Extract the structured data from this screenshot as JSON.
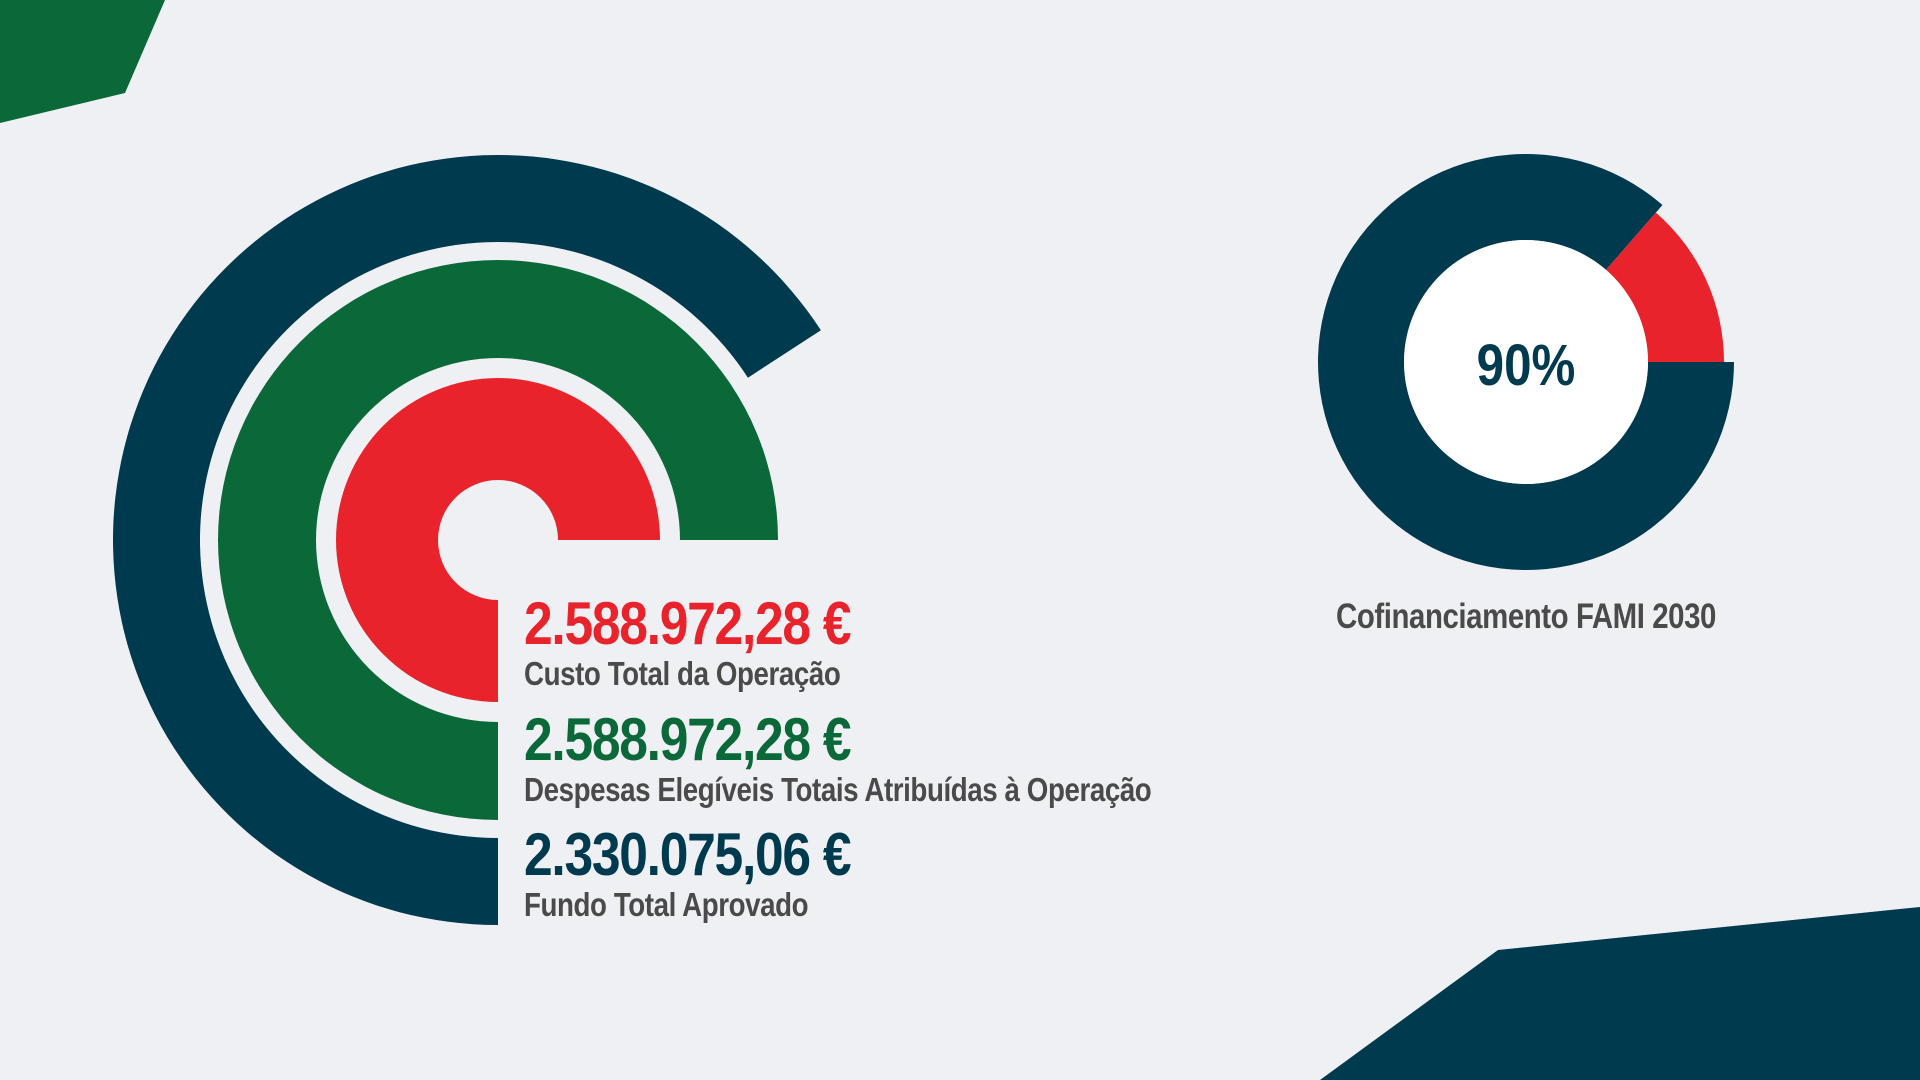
{
  "colors": {
    "background": "#eff0f4",
    "navy": "#003a4e",
    "green": "#0b6838",
    "red": "#e8232c",
    "white": "#ffffff",
    "label_gray": "#4a4a4a"
  },
  "chart_data": [
    {
      "type": "radial-bar",
      "series": [
        {
          "name": "Custo Total da Operação",
          "value": 2588972.28,
          "value_label": "2.588.972,28 €",
          "color": "#e8232c"
        },
        {
          "name": "Despesas Elegíveis Totais Atribuídas à Operação",
          "value": 2588972.28,
          "value_label": "2.588.972,28 €",
          "color": "#0b6838"
        },
        {
          "name": "Fundo Total Aprovado",
          "value": 2330075.06,
          "value_label": "2.330.075,06 €",
          "color": "#003a4e"
        }
      ]
    },
    {
      "type": "pie",
      "title": "Cofinanciamento FAMI 2030",
      "center_label": "90%",
      "slices": [
        {
          "value": 90,
          "color": "#003a4e"
        },
        {
          "value": 10,
          "color": "#e8232c"
        }
      ]
    }
  ]
}
